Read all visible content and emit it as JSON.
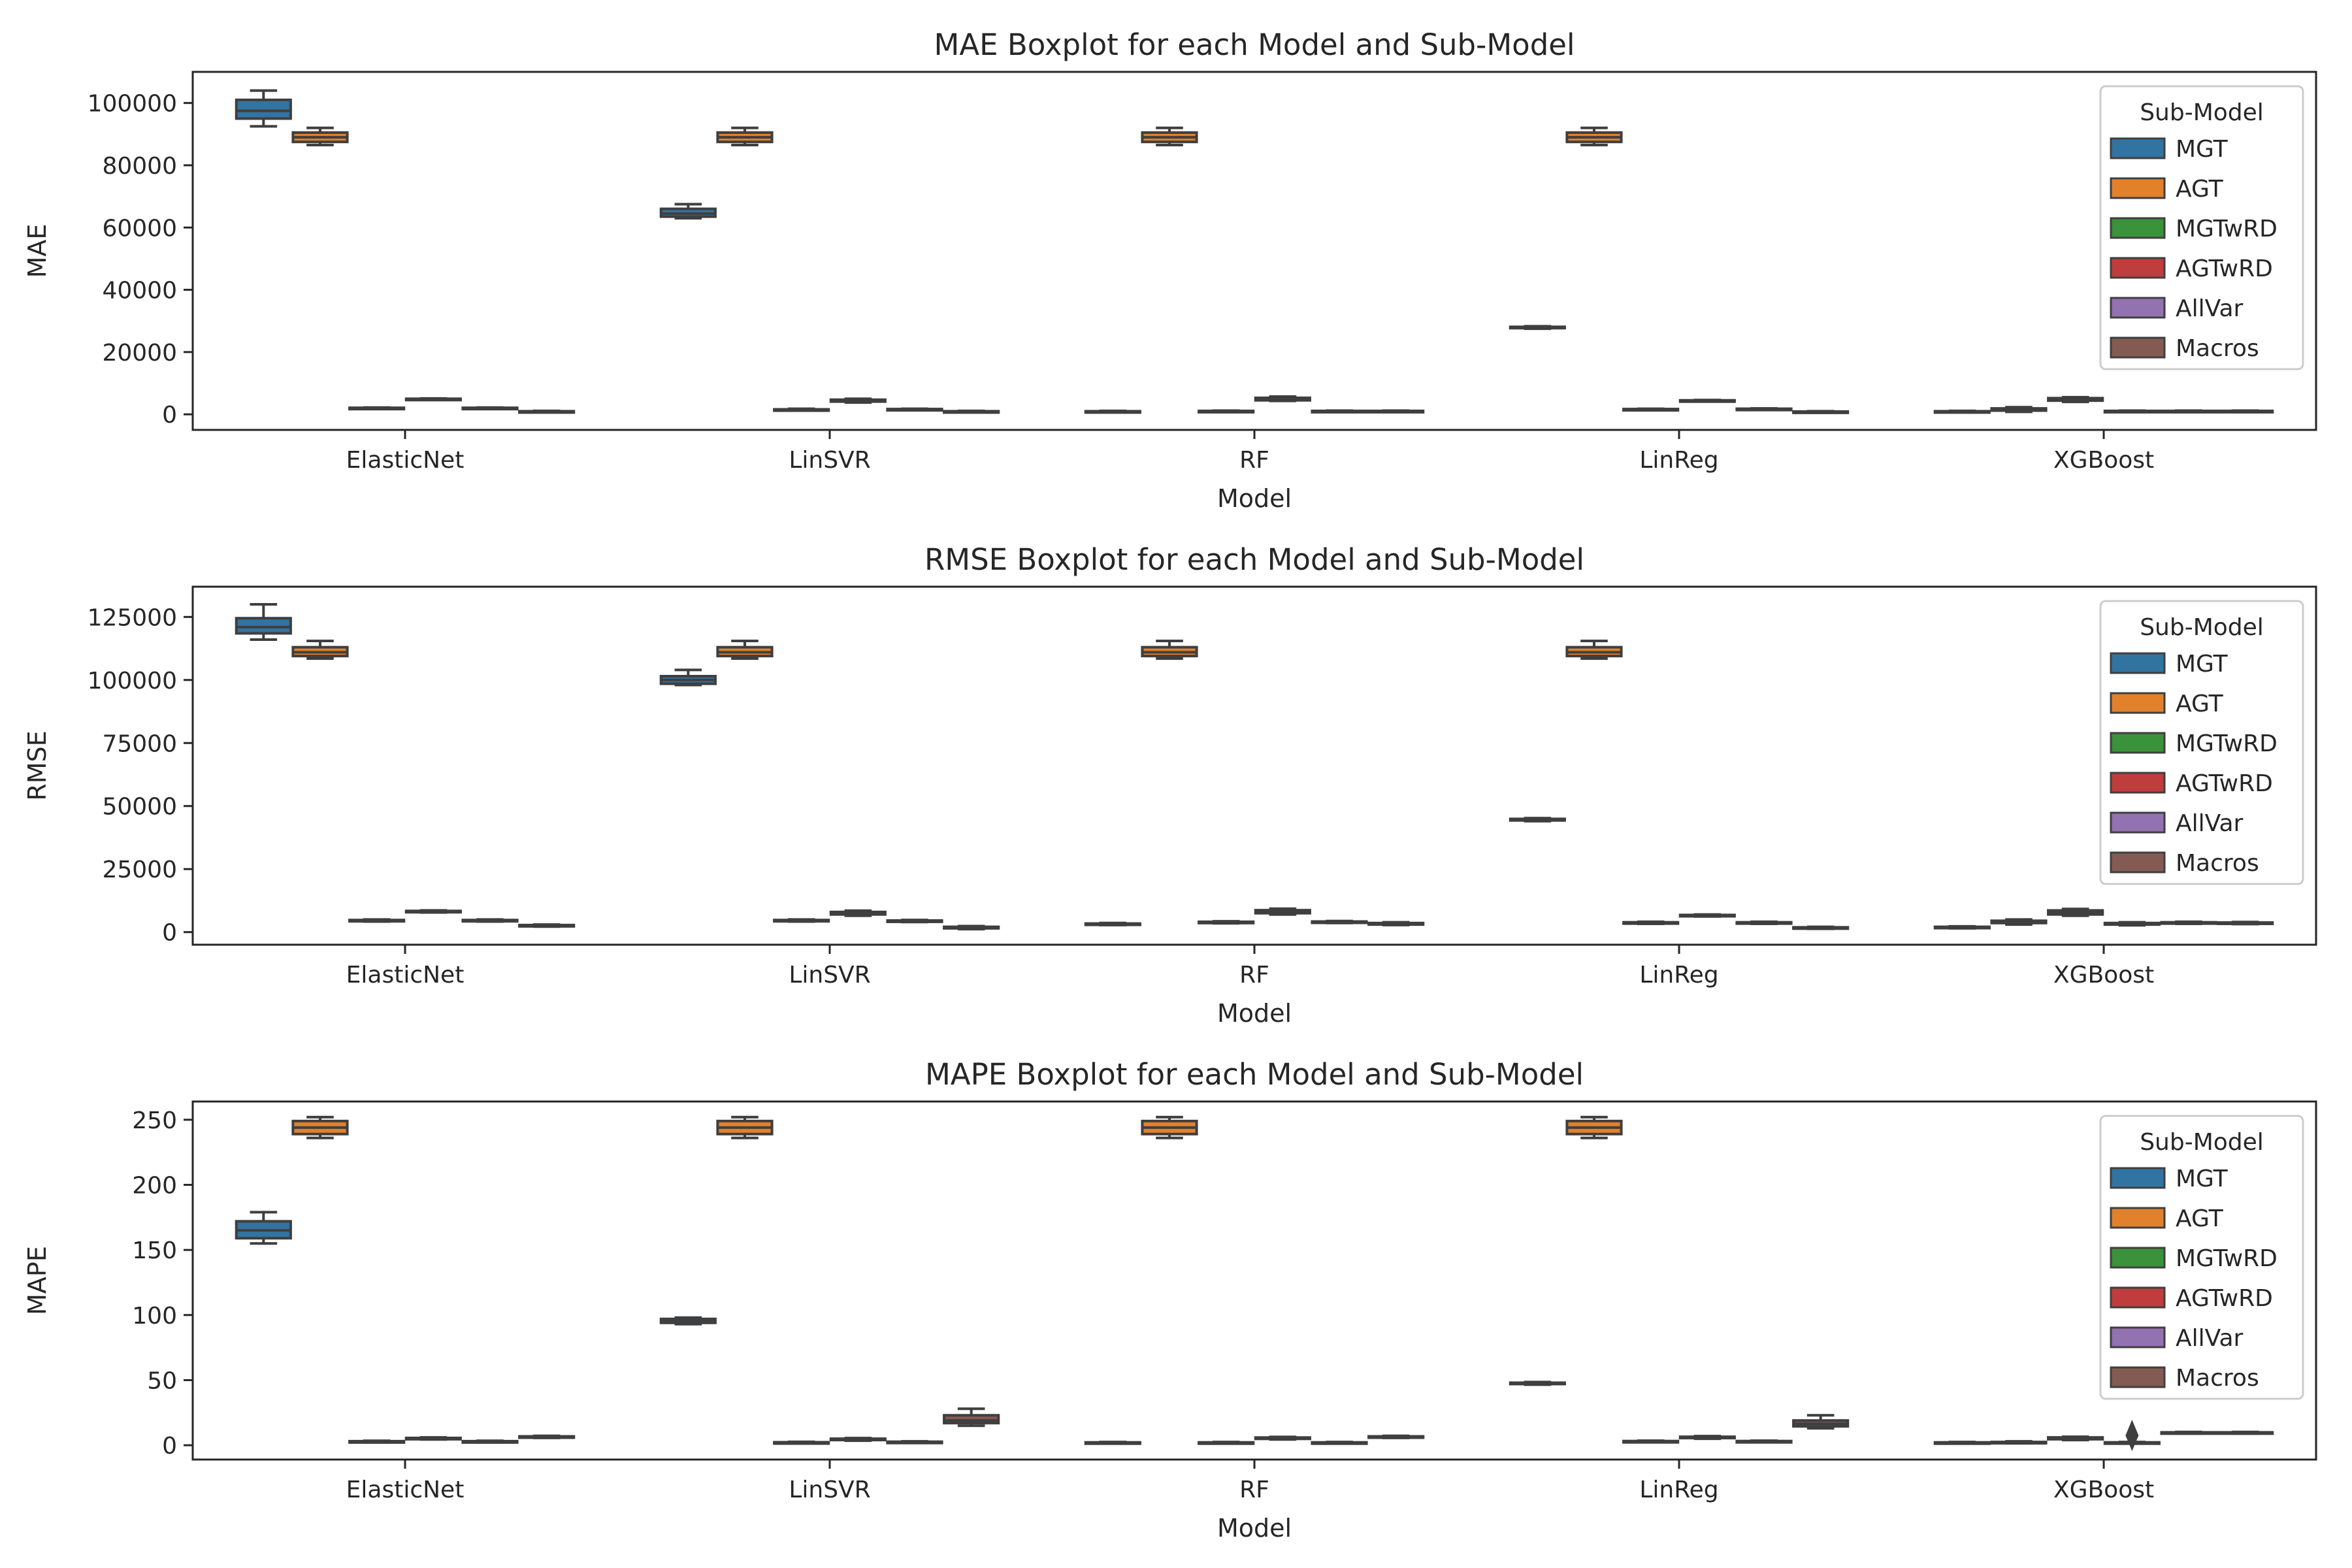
{
  "figure": {
    "sub_models": [
      "MGT",
      "AGT",
      "MGTwRD",
      "AGTwRD",
      "AllVar",
      "Macros"
    ],
    "colors": {
      "MGT": "#3274a1",
      "AGT": "#e1812c",
      "MGTwRD": "#3a923a",
      "AGTwRD": "#c03d3e",
      "AllVar": "#9372b2",
      "Macros": "#845b53"
    }
  },
  "chart_data": [
    {
      "type": "box",
      "title": "MAE Boxplot for each Model and Sub-Model",
      "xlabel": "Model",
      "ylabel": "MAE",
      "categories": [
        "ElasticNet",
        "LinSVR",
        "RF",
        "LinReg",
        "XGBoost"
      ],
      "ylim": [
        -5000,
        110000
      ],
      "yticks": [
        0,
        20000,
        40000,
        60000,
        80000,
        100000
      ],
      "ytick_labels": [
        "0",
        "20000",
        "40000",
        "60000",
        "80000",
        "100000"
      ],
      "legend": {
        "title": "Sub-Model",
        "position": "right",
        "labels": [
          "MGT",
          "AGT",
          "MGTwRD",
          "AGTwRD",
          "AllVar",
          "Macros"
        ]
      },
      "series": [
        {
          "name": "MGT",
          "boxes": [
            [
              92500,
              95000,
              97500,
              101000,
              104000
            ],
            [
              63000,
              63500,
              64500,
              66000,
              67500
            ],
            [
              700,
              800,
              900,
              1000,
              1100
            ],
            [
              27500,
              27700,
              27900,
              28100,
              28300
            ],
            [
              700,
              800,
              900,
              1000,
              1100
            ]
          ]
        },
        {
          "name": "AGT",
          "boxes": [
            [
              86500,
              87500,
              89000,
              90500,
              92000
            ],
            [
              86500,
              87500,
              89000,
              90500,
              92000
            ],
            [
              86500,
              87500,
              89000,
              90500,
              92000
            ],
            [
              86500,
              87500,
              89000,
              90500,
              92000
            ],
            [
              800,
              1200,
              1500,
              1900,
              2300
            ]
          ]
        },
        {
          "name": "MGTwRD",
          "boxes": [
            [
              1800,
              1900,
              2000,
              2100,
              2200
            ],
            [
              1300,
              1400,
              1500,
              1600,
              1800
            ],
            [
              800,
              900,
              1000,
              1100,
              1200
            ],
            [
              1400,
              1500,
              1600,
              1700,
              1800
            ],
            [
              4000,
              4400,
              4800,
              5200,
              5500
            ]
          ]
        },
        {
          "name": "AGTwRD",
          "boxes": [
            [
              4700,
              4800,
              4900,
              5000,
              5100
            ],
            [
              3800,
              4100,
              4400,
              4700,
              5000
            ],
            [
              4300,
              4500,
              4900,
              5300,
              5700
            ],
            [
              4200,
              4300,
              4400,
              4500,
              4600
            ],
            [
              800,
              900,
              1000,
              1100,
              1200
            ]
          ]
        },
        {
          "name": "AllVar",
          "boxes": [
            [
              1800,
              1900,
              2000,
              2100,
              2200
            ],
            [
              1400,
              1500,
              1600,
              1700,
              1800
            ],
            [
              800,
              900,
              1000,
              1100,
              1200
            ],
            [
              1500,
              1600,
              1700,
              1800,
              1900
            ],
            [
              800,
              900,
              1000,
              1100,
              1200
            ]
          ]
        },
        {
          "name": "Macros",
          "boxes": [
            [
              700,
              800,
              900,
              1000,
              1100
            ],
            [
              700,
              800,
              900,
              1000,
              1100
            ],
            [
              800,
              900,
              1000,
              1100,
              1200
            ],
            [
              600,
              700,
              800,
              900,
              1000
            ],
            [
              800,
              900,
              1000,
              1100,
              1200
            ]
          ]
        }
      ],
      "outliers": []
    },
    {
      "type": "box",
      "title": "RMSE Boxplot for each Model and Sub-Model",
      "xlabel": "Model",
      "ylabel": "RMSE",
      "categories": [
        "ElasticNet",
        "LinSVR",
        "RF",
        "LinReg",
        "XGBoost"
      ],
      "ylim": [
        -5000,
        137000
      ],
      "yticks": [
        0,
        25000,
        50000,
        75000,
        100000,
        125000
      ],
      "ytick_labels": [
        "0",
        "25000",
        "50000",
        "75000",
        "100000",
        "125000"
      ],
      "legend": {
        "title": "Sub-Model",
        "position": "right",
        "labels": [
          "MGT",
          "AGT",
          "MGTwRD",
          "AGTwRD",
          "AllVar",
          "Macros"
        ]
      },
      "series": [
        {
          "name": "MGT",
          "boxes": [
            [
              116000,
              118500,
              121000,
              124500,
              130000
            ],
            [
              98000,
              98500,
              100000,
              101500,
              104000
            ],
            [
              2800,
              3000,
              3200,
              3400,
              3600
            ],
            [
              44000,
              44300,
              44600,
              44900,
              45200
            ],
            [
              1500,
              1700,
              1900,
              2100,
              2300
            ]
          ]
        },
        {
          "name": "AGT",
          "boxes": [
            [
              108500,
              109500,
              111000,
              113000,
              115500
            ],
            [
              108500,
              109500,
              111000,
              113000,
              115500
            ],
            [
              108500,
              109500,
              111000,
              113000,
              115500
            ],
            [
              108500,
              109500,
              111000,
              113000,
              115500
            ],
            [
              3000,
              3600,
              4000,
              4500,
              5000
            ]
          ]
        },
        {
          "name": "MGTwRD",
          "boxes": [
            [
              4200,
              4400,
              4600,
              4800,
              5000
            ],
            [
              4200,
              4400,
              4600,
              4800,
              5000
            ],
            [
              3500,
              3700,
              3900,
              4100,
              4300
            ],
            [
              3300,
              3500,
              3700,
              3900,
              4100
            ],
            [
              6500,
              7000,
              7800,
              8600,
              9200
            ]
          ]
        },
        {
          "name": "AGTwRD",
          "boxes": [
            [
              7800,
              8000,
              8200,
              8400,
              8600
            ],
            [
              6500,
              7000,
              7500,
              8000,
              8500
            ],
            [
              7000,
              7500,
              8000,
              8700,
              9300
            ],
            [
              6200,
              6400,
              6600,
              6800,
              7000
            ],
            [
              2700,
              3000,
              3300,
              3600,
              3900
            ]
          ]
        },
        {
          "name": "AllVar",
          "boxes": [
            [
              4200,
              4400,
              4600,
              4800,
              5000
            ],
            [
              4000,
              4200,
              4400,
              4600,
              4800
            ],
            [
              3600,
              3800,
              4000,
              4200,
              4400
            ],
            [
              3300,
              3500,
              3700,
              3900,
              4100
            ],
            [
              3300,
              3500,
              3700,
              3900,
              4100
            ]
          ]
        },
        {
          "name": "Macros",
          "boxes": [
            [
              2200,
              2400,
              2600,
              2800,
              3000
            ],
            [
              1200,
              1500,
              1800,
              2100,
              2400
            ],
            [
              2800,
              3000,
              3300,
              3600,
              3900
            ],
            [
              1300,
              1500,
              1700,
              1900,
              2100
            ],
            [
              3200,
              3400,
              3600,
              3800,
              4000
            ]
          ]
        }
      ],
      "outliers": []
    },
    {
      "type": "box",
      "title": "MAPE Boxplot for each Model and Sub-Model",
      "xlabel": "Model",
      "ylabel": "MAPE",
      "categories": [
        "ElasticNet",
        "LinSVR",
        "RF",
        "LinReg",
        "XGBoost"
      ],
      "ylim": [
        -11,
        264
      ],
      "yticks": [
        0,
        50,
        100,
        150,
        200,
        250
      ],
      "ytick_labels": [
        "0",
        "50",
        "100",
        "150",
        "200",
        "250"
      ],
      "legend": {
        "title": "Sub-Model",
        "position": "right",
        "labels": [
          "MGT",
          "AGT",
          "MGTwRD",
          "AGTwRD",
          "AllVar",
          "Macros"
        ]
      },
      "series": [
        {
          "name": "MGT",
          "boxes": [
            [
              155,
              159,
              165,
              172,
              179
            ],
            [
              93,
              94,
              96,
              97,
              98
            ],
            [
              1.5,
              1.8,
              2.0,
              2.2,
              2.5
            ],
            [
              46.5,
              47,
              47.5,
              48,
              48.5
            ],
            [
              1.5,
              1.8,
              2.0,
              2.2,
              2.5
            ]
          ]
        },
        {
          "name": "AGT",
          "boxes": [
            [
              236,
              239,
              244,
              249,
              252
            ],
            [
              236,
              239,
              244,
              249,
              252
            ],
            [
              236,
              239,
              244,
              249,
              252
            ],
            [
              236,
              239,
              244,
              249,
              252
            ],
            [
              1.5,
              1.8,
              2.1,
              2.5,
              3.0
            ]
          ]
        },
        {
          "name": "MGTwRD",
          "boxes": [
            [
              2.2,
              2.5,
              2.8,
              3.1,
              3.4
            ],
            [
              1.5,
              1.8,
              2.0,
              2.3,
              2.6
            ],
            [
              1.5,
              1.8,
              2.0,
              2.2,
              2.5
            ],
            [
              2.3,
              2.6,
              2.9,
              3.2,
              3.5
            ],
            [
              4.0,
              4.6,
              5.3,
              6.0,
              6.5
            ]
          ]
        },
        {
          "name": "AGTwRD",
          "boxes": [
            [
              4.4,
              4.8,
              5.2,
              5.6,
              6.0
            ],
            [
              3.5,
              4.0,
              4.5,
              5.0,
              5.5
            ],
            [
              4.4,
              4.9,
              5.4,
              5.9,
              6.4
            ],
            [
              5.0,
              5.5,
              6.0,
              6.5,
              7.0
            ],
            [
              1.5,
              1.8,
              2.0,
              2.2,
              2.5
            ]
          ]
        },
        {
          "name": "AllVar",
          "boxes": [
            [
              2.2,
              2.5,
              2.8,
              3.1,
              3.4
            ],
            [
              1.8,
              2.1,
              2.4,
              2.7,
              3.0
            ],
            [
              1.5,
              1.8,
              2.0,
              2.2,
              2.5
            ],
            [
              2.3,
              2.6,
              2.9,
              3.2,
              3.5
            ],
            [
              9,
              9.3,
              9.6,
              9.9,
              10.2
            ]
          ]
        },
        {
          "name": "Macros",
          "boxes": [
            [
              5.6,
              6.0,
              6.4,
              6.8,
              7.2
            ],
            [
              15,
              17,
              19,
              23,
              28
            ],
            [
              5.6,
              6.0,
              6.4,
              6.8,
              7.2
            ],
            [
              13,
              14.5,
              16.5,
              19,
              23
            ],
            [
              9,
              9.3,
              9.6,
              9.9,
              10.2
            ]
          ]
        }
      ],
      "outliers": [
        {
          "series": "AGTwRD",
          "category": "XGBoost",
          "values": [
            7.5
          ]
        }
      ]
    }
  ]
}
